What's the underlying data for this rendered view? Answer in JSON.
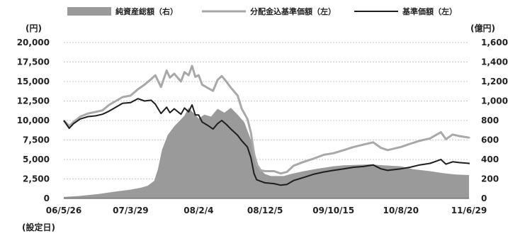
{
  "chart_data": {
    "type": "area",
    "left_axis_unit": "(円)",
    "right_axis_unit": "(億円)",
    "x_footnote": "(設定日)",
    "x_tick_labels": [
      "06/5/26",
      "07/3/29",
      "08/2/4",
      "08/12/5",
      "09/10/15",
      "10/8/20",
      "11/6/29"
    ],
    "x_tick_dates": [
      "2006-05-26",
      "2007-03-29",
      "2008-02-04",
      "2008-12-05",
      "2009-10-15",
      "2010-08-20",
      "2011-06-29"
    ],
    "y_left": {
      "min": 0,
      "max": 20000,
      "ticks": [
        "0",
        "2,500",
        "5,000",
        "7,500",
        "10,000",
        "12,500",
        "15,000",
        "17,500",
        "20,000"
      ]
    },
    "y_right": {
      "min": 0,
      "max": 1600,
      "ticks": [
        "0",
        "200",
        "400",
        "600",
        "800",
        "1,000",
        "1,200",
        "1,400",
        "1,600"
      ]
    },
    "grid": true,
    "legend_position": "top",
    "series": [
      {
        "name": "純資産総額（右）",
        "kind": "area",
        "axis": "right",
        "color": "#9a9a9a",
        "points": [
          [
            "2006-05-26",
            15
          ],
          [
            "2006-08-01",
            25
          ],
          [
            "2006-11-01",
            45
          ],
          [
            "2007-02-01",
            75
          ],
          [
            "2007-03-29",
            90
          ],
          [
            "2007-05-15",
            110
          ],
          [
            "2007-06-15",
            130
          ],
          [
            "2007-07-15",
            180
          ],
          [
            "2007-08-01",
            300
          ],
          [
            "2007-08-20",
            500
          ],
          [
            "2007-09-15",
            650
          ],
          [
            "2007-10-15",
            740
          ],
          [
            "2007-11-10",
            800
          ],
          [
            "2007-12-01",
            850
          ],
          [
            "2007-12-20",
            930
          ],
          [
            "2008-01-10",
            880
          ],
          [
            "2008-02-04",
            820
          ],
          [
            "2008-03-01",
            860
          ],
          [
            "2008-04-01",
            840
          ],
          [
            "2008-05-01",
            920
          ],
          [
            "2008-06-01",
            880
          ],
          [
            "2008-07-01",
            930
          ],
          [
            "2008-08-01",
            860
          ],
          [
            "2008-09-01",
            780
          ],
          [
            "2008-10-01",
            600
          ],
          [
            "2008-10-20",
            450
          ],
          [
            "2008-11-10",
            300
          ],
          [
            "2008-12-05",
            250
          ],
          [
            "2009-01-01",
            230
          ],
          [
            "2009-02-01",
            230
          ],
          [
            "2009-03-01",
            230
          ],
          [
            "2009-04-01",
            250
          ],
          [
            "2009-06-01",
            280
          ],
          [
            "2009-08-01",
            305
          ],
          [
            "2009-10-15",
            330
          ],
          [
            "2009-12-01",
            340
          ],
          [
            "2010-02-01",
            345
          ],
          [
            "2010-04-01",
            350
          ],
          [
            "2010-05-01",
            345
          ],
          [
            "2010-06-01",
            340
          ],
          [
            "2010-08-20",
            330
          ],
          [
            "2010-10-15",
            300
          ],
          [
            "2011-01-01",
            280
          ],
          [
            "2011-03-01",
            260
          ],
          [
            "2011-05-01",
            245
          ],
          [
            "2011-06-29",
            240
          ],
          [
            "2011-07-15",
            230
          ]
        ]
      },
      {
        "name": "分配金込基準価額（左）",
        "kind": "line",
        "axis": "left",
        "color": "#a8a8a8",
        "points": [
          [
            "2006-05-26",
            10000
          ],
          [
            "2006-06-20",
            9300
          ],
          [
            "2006-07-10",
            9800
          ],
          [
            "2006-08-10",
            10500
          ],
          [
            "2006-09-15",
            10900
          ],
          [
            "2006-10-20",
            11100
          ],
          [
            "2006-11-20",
            11300
          ],
          [
            "2006-12-20",
            12000
          ],
          [
            "2007-01-20",
            12500
          ],
          [
            "2007-02-20",
            13000
          ],
          [
            "2007-03-29",
            13200
          ],
          [
            "2007-05-01",
            14000
          ],
          [
            "2007-06-01",
            14600
          ],
          [
            "2007-07-01",
            15300
          ],
          [
            "2007-07-20",
            15800
          ],
          [
            "2007-08-15",
            14300
          ],
          [
            "2007-09-10",
            16400
          ],
          [
            "2007-09-25",
            15500
          ],
          [
            "2007-10-15",
            16000
          ],
          [
            "2007-11-15",
            15000
          ],
          [
            "2007-12-01",
            16200
          ],
          [
            "2007-12-20",
            15800
          ],
          [
            "2008-01-05",
            17000
          ],
          [
            "2008-01-20",
            15600
          ],
          [
            "2008-02-04",
            15800
          ],
          [
            "2008-02-20",
            14600
          ],
          [
            "2008-03-15",
            14200
          ],
          [
            "2008-04-10",
            13800
          ],
          [
            "2008-05-01",
            15200
          ],
          [
            "2008-05-20",
            15700
          ],
          [
            "2008-06-10",
            15000
          ],
          [
            "2008-07-01",
            14200
          ],
          [
            "2008-08-01",
            13200
          ],
          [
            "2008-08-20",
            11500
          ],
          [
            "2008-09-15",
            10200
          ],
          [
            "2008-10-01",
            8400
          ],
          [
            "2008-10-15",
            5800
          ],
          [
            "2008-10-27",
            4400
          ],
          [
            "2008-11-15",
            3600
          ],
          [
            "2008-12-05",
            3500
          ],
          [
            "2009-01-15",
            3500
          ],
          [
            "2009-02-15",
            3200
          ],
          [
            "2009-03-15",
            3400
          ],
          [
            "2009-04-15",
            4200
          ],
          [
            "2009-06-01",
            4700
          ],
          [
            "2009-07-15",
            5100
          ],
          [
            "2009-09-01",
            5600
          ],
          [
            "2009-10-15",
            5800
          ],
          [
            "2009-12-01",
            6200
          ],
          [
            "2010-01-15",
            6600
          ],
          [
            "2010-03-01",
            6900
          ],
          [
            "2010-04-15",
            7200
          ],
          [
            "2010-05-20",
            6500
          ],
          [
            "2010-06-20",
            6200
          ],
          [
            "2010-08-20",
            6600
          ],
          [
            "2010-10-01",
            7000
          ],
          [
            "2010-11-15",
            7400
          ],
          [
            "2011-01-01",
            7700
          ],
          [
            "2011-02-01",
            8200
          ],
          [
            "2011-02-20",
            8500
          ],
          [
            "2011-03-15",
            7600
          ],
          [
            "2011-04-15",
            8200
          ],
          [
            "2011-05-15",
            8000
          ],
          [
            "2011-06-29",
            7800
          ],
          [
            "2011-07-15",
            7700
          ]
        ]
      },
      {
        "name": "基準価額（左）",
        "kind": "line",
        "axis": "left",
        "color": "#1e1e1e",
        "points": [
          [
            "2006-05-26",
            10000
          ],
          [
            "2006-06-20",
            9000
          ],
          [
            "2006-07-10",
            9600
          ],
          [
            "2006-08-10",
            10200
          ],
          [
            "2006-09-15",
            10500
          ],
          [
            "2006-10-20",
            10600
          ],
          [
            "2006-11-20",
            10800
          ],
          [
            "2006-12-20",
            11200
          ],
          [
            "2007-01-20",
            11700
          ],
          [
            "2007-02-20",
            12200
          ],
          [
            "2007-03-29",
            12300
          ],
          [
            "2007-05-01",
            12800
          ],
          [
            "2007-06-01",
            12500
          ],
          [
            "2007-07-01",
            12600
          ],
          [
            "2007-07-20",
            12100
          ],
          [
            "2007-08-15",
            10900
          ],
          [
            "2007-09-10",
            11700
          ],
          [
            "2007-09-25",
            11000
          ],
          [
            "2007-10-15",
            11500
          ],
          [
            "2007-11-15",
            10800
          ],
          [
            "2007-12-01",
            11600
          ],
          [
            "2007-12-20",
            11100
          ],
          [
            "2008-01-05",
            12000
          ],
          [
            "2008-01-20",
            10700
          ],
          [
            "2008-02-04",
            10700
          ],
          [
            "2008-02-20",
            9800
          ],
          [
            "2008-03-15",
            9400
          ],
          [
            "2008-04-10",
            8900
          ],
          [
            "2008-05-01",
            9600
          ],
          [
            "2008-05-20",
            10000
          ],
          [
            "2008-06-10",
            9500
          ],
          [
            "2008-07-01",
            8900
          ],
          [
            "2008-08-01",
            8100
          ],
          [
            "2008-08-20",
            7400
          ],
          [
            "2008-09-15",
            6600
          ],
          [
            "2008-10-01",
            5200
          ],
          [
            "2008-10-15",
            3200
          ],
          [
            "2008-10-27",
            2400
          ],
          [
            "2008-11-15",
            2200
          ],
          [
            "2008-12-05",
            2000
          ],
          [
            "2009-01-15",
            1900
          ],
          [
            "2009-02-15",
            1700
          ],
          [
            "2009-03-15",
            1800
          ],
          [
            "2009-04-15",
            2300
          ],
          [
            "2009-06-01",
            2700
          ],
          [
            "2009-07-15",
            3100
          ],
          [
            "2009-09-01",
            3400
          ],
          [
            "2009-10-15",
            3600
          ],
          [
            "2009-12-01",
            3800
          ],
          [
            "2010-01-15",
            4000
          ],
          [
            "2010-03-01",
            4100
          ],
          [
            "2010-04-15",
            4300
          ],
          [
            "2010-05-20",
            3800
          ],
          [
            "2010-06-20",
            3600
          ],
          [
            "2010-08-20",
            3800
          ],
          [
            "2010-10-01",
            4000
          ],
          [
            "2010-11-15",
            4300
          ],
          [
            "2011-01-01",
            4500
          ],
          [
            "2011-02-01",
            4800
          ],
          [
            "2011-02-20",
            5000
          ],
          [
            "2011-03-15",
            4400
          ],
          [
            "2011-04-15",
            4700
          ],
          [
            "2011-05-15",
            4600
          ],
          [
            "2011-06-29",
            4500
          ],
          [
            "2011-07-15",
            4400
          ]
        ]
      }
    ]
  }
}
